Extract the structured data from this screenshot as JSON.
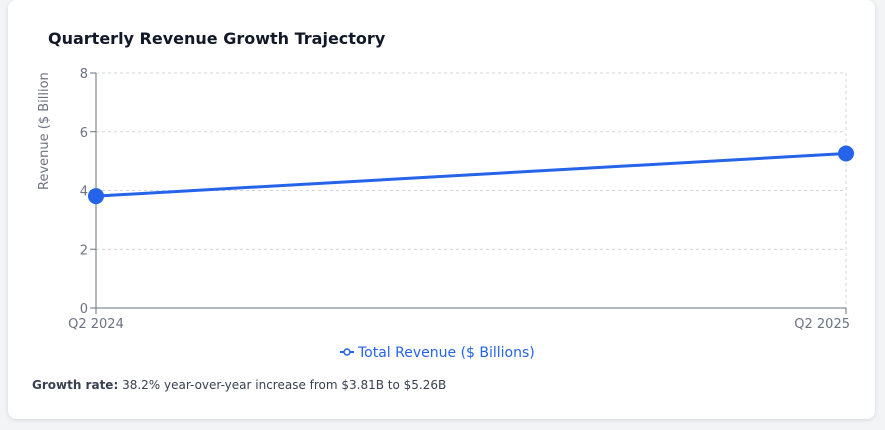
{
  "colors": {
    "series": "#2563eb",
    "grid": "#d1d5db",
    "axis": "#6b7280",
    "card": "#ffffff",
    "background": "#f3f4f6"
  },
  "chart_data": {
    "type": "line",
    "title": "Quarterly Revenue Growth Trajectory",
    "xlabel": "",
    "ylabel": "Revenue ($ Billion",
    "categories": [
      "Q2 2024",
      "Q2 2025"
    ],
    "series": [
      {
        "name": "Total Revenue ($ Billions)",
        "values": [
          3.81,
          5.26
        ]
      }
    ],
    "yticks": [
      "0",
      "2",
      "4",
      "6",
      "8"
    ],
    "ylim": [
      0,
      8
    ],
    "grid": true,
    "legend": "bottom"
  },
  "footer": {
    "label": "Growth rate:",
    "text": "38.2% year-over-year increase from $3.81B to $5.26B"
  }
}
